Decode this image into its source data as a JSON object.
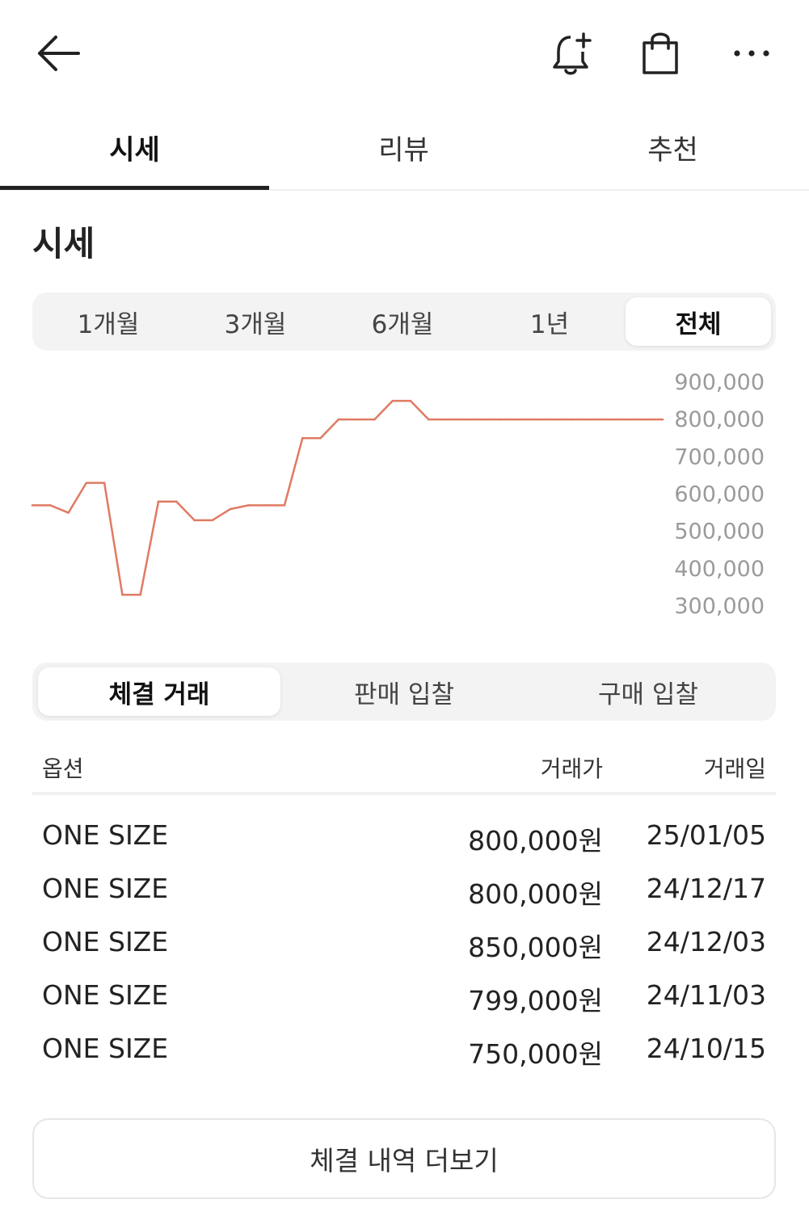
{
  "header": {
    "back_icon": "arrow-left-icon",
    "alert_icon": "bell-plus-icon",
    "cart_icon": "shopping-bag-icon",
    "more_icon": "more-horizontal-icon"
  },
  "tabs": [
    {
      "label": "시세",
      "active": true
    },
    {
      "label": "리뷰",
      "active": false
    },
    {
      "label": "추천",
      "active": false
    }
  ],
  "section_title": "시세",
  "period_filters": [
    {
      "label": "1개월",
      "active": false
    },
    {
      "label": "3개월",
      "active": false
    },
    {
      "label": "6개월",
      "active": false
    },
    {
      "label": "1년",
      "active": false
    },
    {
      "label": "전체",
      "active": true
    }
  ],
  "chart_data": {
    "type": "line",
    "title": "",
    "xlabel": "",
    "ylabel": "",
    "ylim": [
      300000,
      900000
    ],
    "yticks": [
      "900,000",
      "800,000",
      "700,000",
      "600,000",
      "500,000",
      "400,000",
      "300,000"
    ],
    "ytick_values": [
      900000,
      800000,
      700000,
      600000,
      500000,
      400000,
      300000
    ],
    "axis_position": "right",
    "grid": false,
    "legend": "none",
    "color": "#e07a62",
    "x": [
      0,
      1,
      2,
      3,
      4,
      5,
      6,
      7,
      8,
      9,
      10,
      11,
      12,
      13,
      14,
      15,
      16,
      17,
      18,
      19,
      20,
      21,
      22,
      23,
      24,
      25,
      26,
      27,
      28,
      29,
      30,
      31,
      32,
      33,
      34,
      35
    ],
    "values": [
      570000,
      570000,
      550000,
      630000,
      630000,
      330000,
      330000,
      580000,
      580000,
      530000,
      530000,
      560000,
      570000,
      570000,
      570000,
      750000,
      750000,
      800000,
      800000,
      800000,
      850000,
      850000,
      800000,
      800000,
      800000,
      800000,
      800000,
      800000,
      800000,
      800000,
      800000,
      800000,
      800000,
      800000,
      800000,
      800000
    ]
  },
  "trade_tabs": [
    {
      "label": "체결 거래",
      "active": true
    },
    {
      "label": "판매 입찰",
      "active": false
    },
    {
      "label": "구매 입찰",
      "active": false
    }
  ],
  "table": {
    "headers": {
      "option": "옵션",
      "price": "거래가",
      "date": "거래일"
    },
    "rows": [
      {
        "option": "ONE SIZE",
        "price": "800,000원",
        "date": "25/01/05"
      },
      {
        "option": "ONE SIZE",
        "price": "800,000원",
        "date": "24/12/17"
      },
      {
        "option": "ONE SIZE",
        "price": "850,000원",
        "date": "24/12/03"
      },
      {
        "option": "ONE SIZE",
        "price": "799,000원",
        "date": "24/11/03"
      },
      {
        "option": "ONE SIZE",
        "price": "750,000원",
        "date": "24/10/15"
      }
    ]
  },
  "more_button": "체결 내역 더보기"
}
